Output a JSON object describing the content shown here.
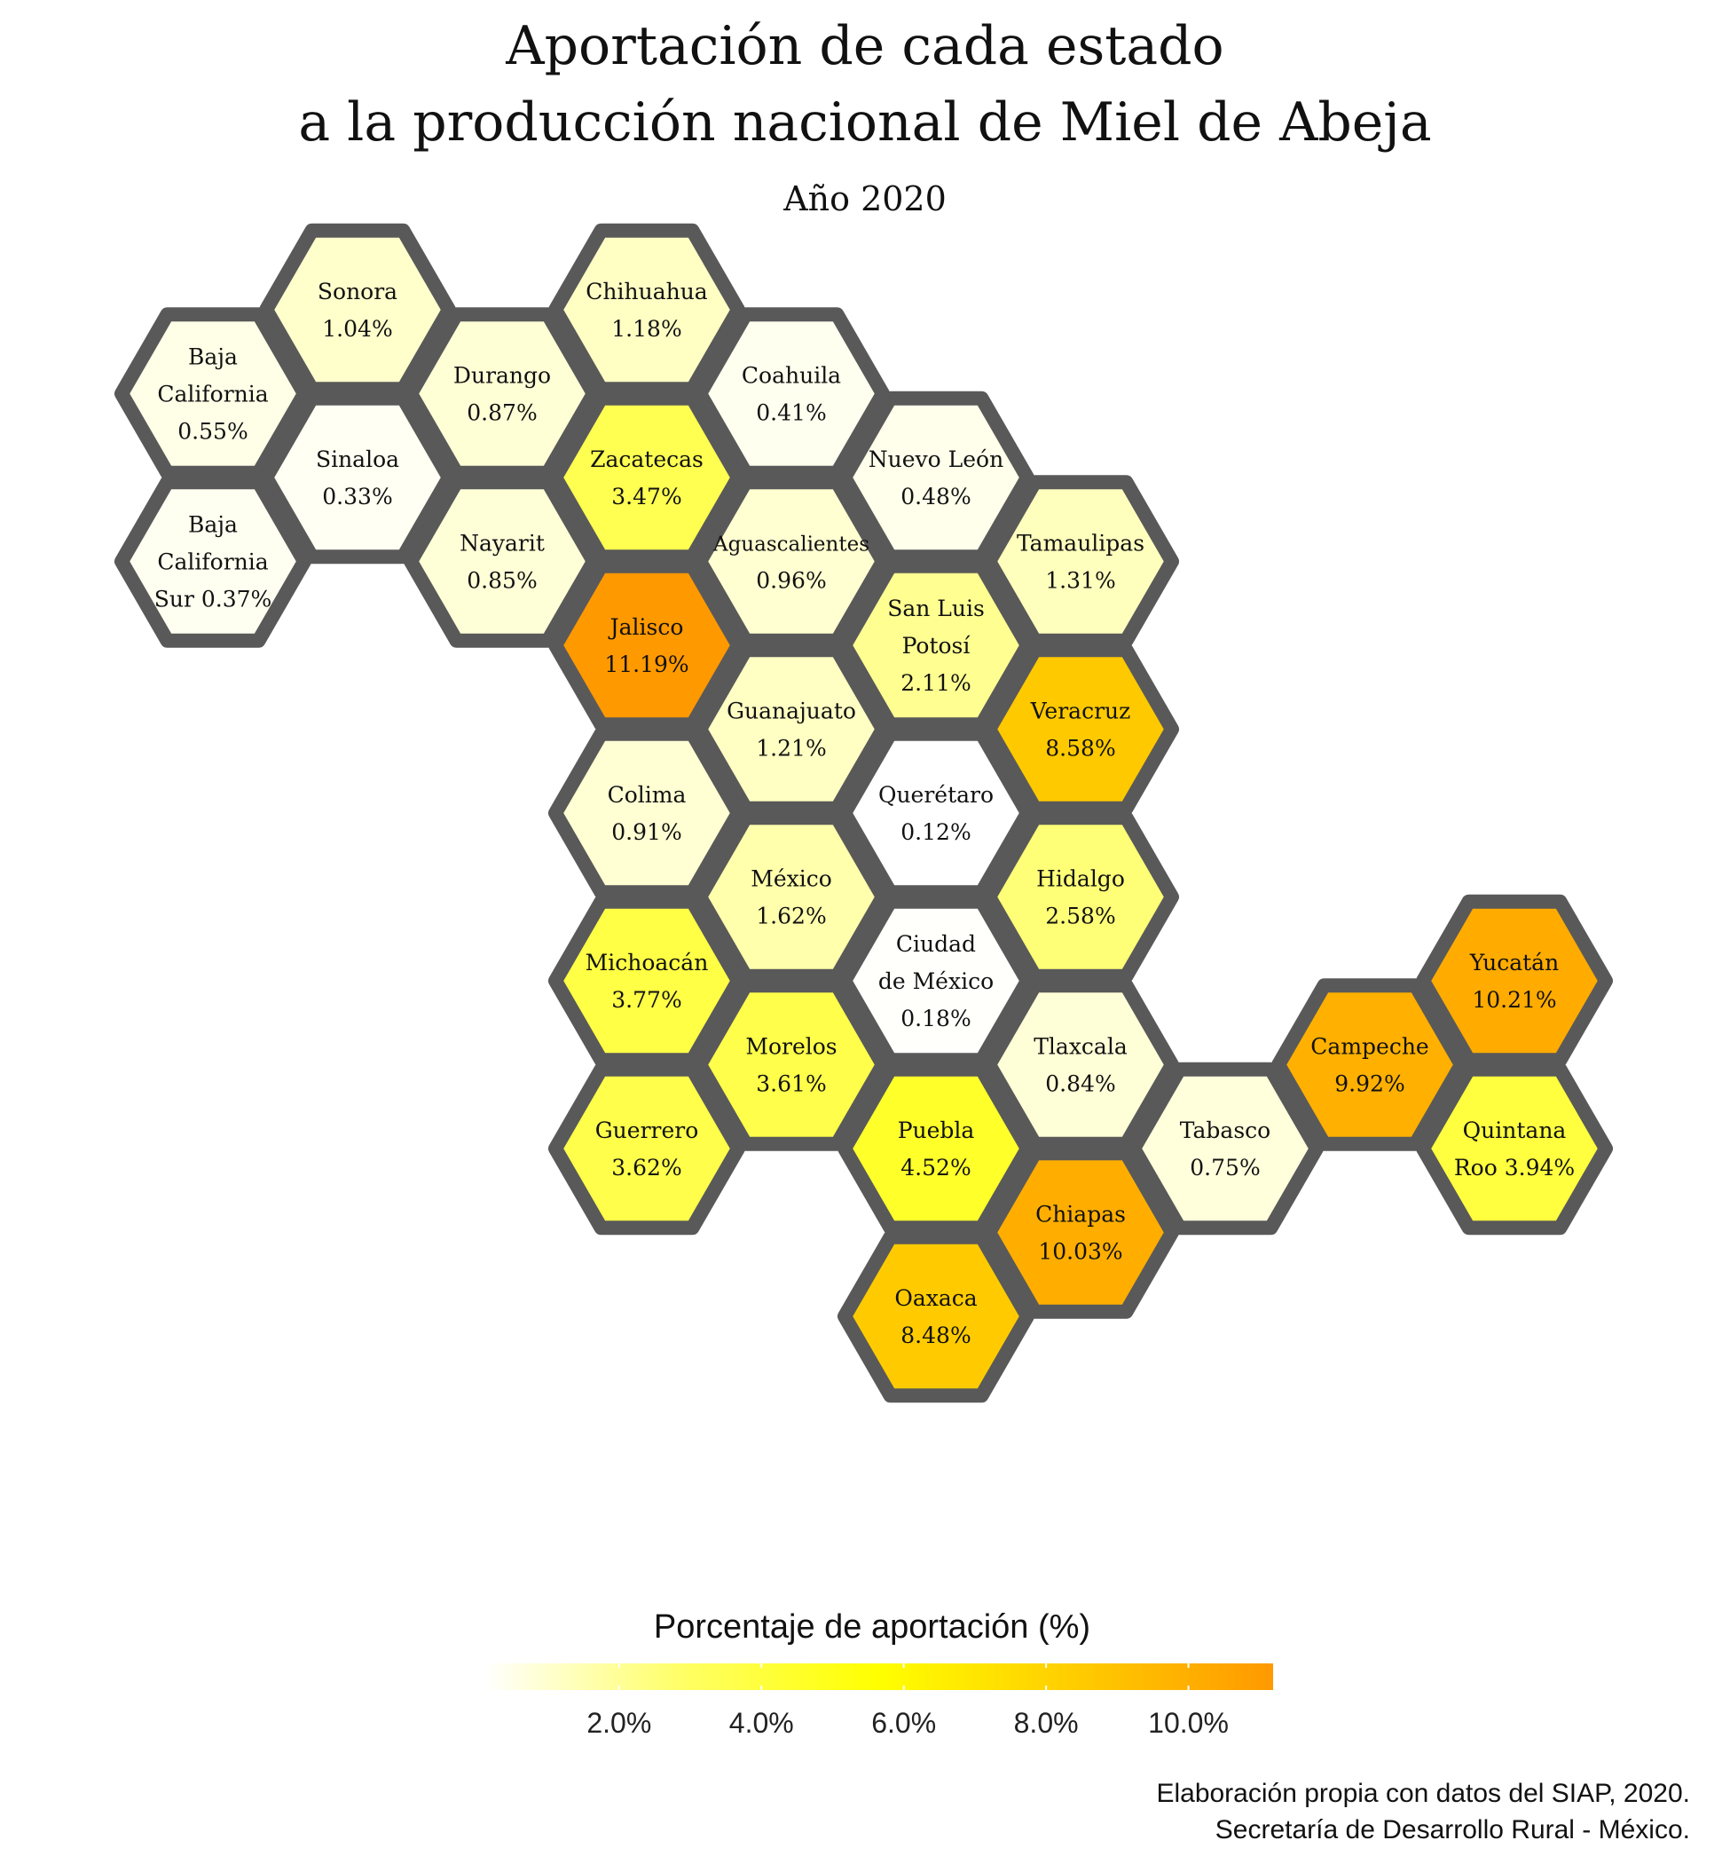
{
  "title_line1": "Aportación de cada estado",
  "title_line2": "a la producción nacional de Miel de Abeja",
  "subtitle": "Año 2020",
  "legend": {
    "title": "Porcentaje de aportación (%)",
    "ticks": [
      "2.0%",
      "4.0%",
      "6.0%",
      "8.0%",
      "10.0%"
    ],
    "tick_values": [
      2,
      4,
      6,
      8,
      10
    ],
    "range": [
      0.12,
      11.19
    ],
    "colors": [
      "#ffffff",
      "#ffff66",
      "#ffff00",
      "#ffcc00",
      "#ff9900"
    ]
  },
  "caption_line1": "Elaboración propia con datos del SIAP, 2020.",
  "caption_line2": "Secretaría de Desarrollo Rural - México.",
  "border_color": "#595959",
  "states": [
    {
      "name_lines": [
        "Sonora"
      ],
      "value": 1.04,
      "label": "1.04%",
      "col": 2,
      "row": 0
    },
    {
      "name_lines": [
        "Chihuahua"
      ],
      "value": 1.18,
      "label": "1.18%",
      "col": 4,
      "row": 0
    },
    {
      "name_lines": [
        "Baja",
        "California"
      ],
      "value": 0.55,
      "label": "0.55%",
      "col": 1,
      "row": 1
    },
    {
      "name_lines": [
        "Durango"
      ],
      "value": 0.87,
      "label": "0.87%",
      "col": 3,
      "row": 1
    },
    {
      "name_lines": [
        "Coahuila"
      ],
      "value": 0.41,
      "label": "0.41%",
      "col": 5,
      "row": 1
    },
    {
      "name_lines": [
        "Sinaloa"
      ],
      "value": 0.33,
      "label": "0.33%",
      "col": 2,
      "row": 2
    },
    {
      "name_lines": [
        "Zacatecas"
      ],
      "value": 3.47,
      "label": "3.47%",
      "col": 4,
      "row": 2
    },
    {
      "name_lines": [
        "Nuevo León"
      ],
      "value": 0.48,
      "label": "0.48%",
      "col": 6,
      "row": 2
    },
    {
      "name_lines": [
        "Baja",
        "California"
      ],
      "value": 0.37,
      "label": "Sur 0.37%",
      "col": 1,
      "row": 3
    },
    {
      "name_lines": [
        "Nayarit"
      ],
      "value": 0.85,
      "label": "0.85%",
      "col": 3,
      "row": 3
    },
    {
      "name_lines": [
        "Aguascalientes"
      ],
      "value": 0.96,
      "label": "0.96%",
      "col": 5,
      "row": 3
    },
    {
      "name_lines": [
        "Tamaulipas"
      ],
      "value": 1.31,
      "label": "1.31%",
      "col": 7,
      "row": 3
    },
    {
      "name_lines": [
        "Jalisco"
      ],
      "value": 11.19,
      "label": "11.19%",
      "col": 4,
      "row": 4
    },
    {
      "name_lines": [
        "San Luis",
        "Potosí"
      ],
      "value": 2.11,
      "label": "2.11%",
      "col": 6,
      "row": 4
    },
    {
      "name_lines": [
        "Guanajuato"
      ],
      "value": 1.21,
      "label": "1.21%",
      "col": 5,
      "row": 5
    },
    {
      "name_lines": [
        "Veracruz"
      ],
      "value": 8.58,
      "label": "8.58%",
      "col": 7,
      "row": 5
    },
    {
      "name_lines": [
        "Colima"
      ],
      "value": 0.91,
      "label": "0.91%",
      "col": 4,
      "row": 6
    },
    {
      "name_lines": [
        "Querétaro"
      ],
      "value": 0.12,
      "label": "0.12%",
      "col": 6,
      "row": 6
    },
    {
      "name_lines": [
        "México"
      ],
      "value": 1.62,
      "label": "1.62%",
      "col": 5,
      "row": 7
    },
    {
      "name_lines": [
        "Hidalgo"
      ],
      "value": 2.58,
      "label": "2.58%",
      "col": 7,
      "row": 7
    },
    {
      "name_lines": [
        "Michoacán"
      ],
      "value": 3.77,
      "label": "3.77%",
      "col": 4,
      "row": 8
    },
    {
      "name_lines": [
        "Ciudad",
        "de México"
      ],
      "value": 0.18,
      "label": "0.18%",
      "col": 6,
      "row": 8
    },
    {
      "name_lines": [
        "Yucatán"
      ],
      "value": 10.21,
      "label": "10.21%",
      "col": 10,
      "row": 8
    },
    {
      "name_lines": [
        "Morelos"
      ],
      "value": 3.61,
      "label": "3.61%",
      "col": 5,
      "row": 9
    },
    {
      "name_lines": [
        "Tlaxcala"
      ],
      "value": 0.84,
      "label": "0.84%",
      "col": 7,
      "row": 9
    },
    {
      "name_lines": [
        "Campeche"
      ],
      "value": 9.92,
      "label": "9.92%",
      "col": 9,
      "row": 9
    },
    {
      "name_lines": [
        "Guerrero"
      ],
      "value": 3.62,
      "label": "3.62%",
      "col": 4,
      "row": 10
    },
    {
      "name_lines": [
        "Puebla"
      ],
      "value": 4.52,
      "label": "4.52%",
      "col": 6,
      "row": 10
    },
    {
      "name_lines": [
        "Tabasco"
      ],
      "value": 0.75,
      "label": "0.75%",
      "col": 8,
      "row": 10
    },
    {
      "name_lines": [
        "Quintana"
      ],
      "value": 3.94,
      "label": "Roo 3.94%",
      "col": 10,
      "row": 10
    },
    {
      "name_lines": [
        "Chiapas"
      ],
      "value": 10.03,
      "label": "10.03%",
      "col": 7,
      "row": 11
    },
    {
      "name_lines": [
        "Oaxaca"
      ],
      "value": 8.48,
      "label": "8.48%",
      "col": 6,
      "row": 12
    }
  ]
}
